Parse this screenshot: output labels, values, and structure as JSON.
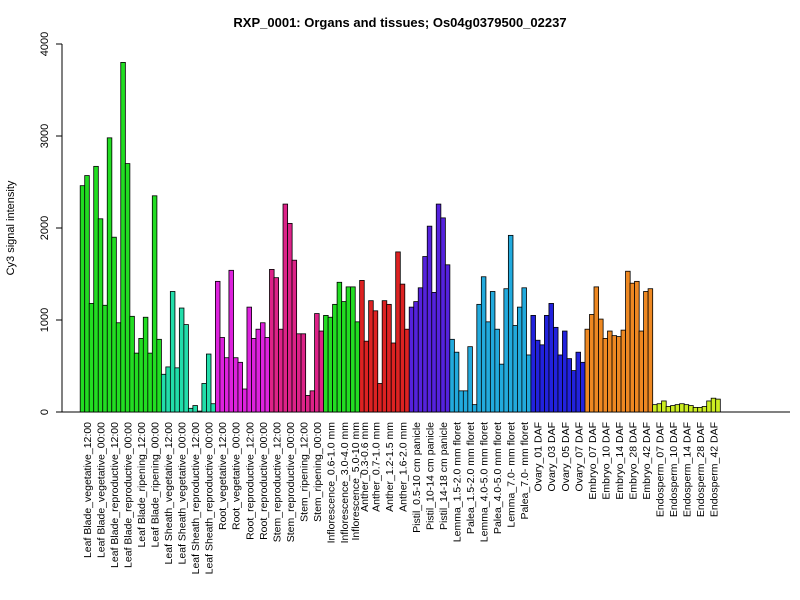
{
  "chart_data": {
    "type": "bar",
    "title": "RXP_0001: Organs and tissues; Os04g0379500_02237",
    "xlabel": "",
    "ylabel": "Cy3 signal intensity",
    "ylim": [
      0,
      4000
    ],
    "yticks": [
      0,
      1000,
      2000,
      3000,
      4000
    ],
    "grid": false,
    "groups": [
      {
        "label": "Leaf Blade_vegetative_12:00",
        "color": "#22dd22",
        "values": [
          2460,
          2570,
          1180
        ]
      },
      {
        "label": "Leaf Blade_vegetative_00:00",
        "color": "#22dd22",
        "values": [
          2670,
          2100,
          1160
        ]
      },
      {
        "label": "Leaf Blade_reproductive_12:00",
        "color": "#22dd22",
        "values": [
          2980,
          1900,
          970
        ]
      },
      {
        "label": "Leaf Blade_reproductive_00:00",
        "color": "#22dd22",
        "values": [
          3800,
          2700,
          1040
        ]
      },
      {
        "label": "Leaf Blade_ripening_12:00",
        "color": "#22dd22",
        "values": [
          640,
          800,
          1030
        ]
      },
      {
        "label": "Leaf Blade_ripening_00:00",
        "color": "#22dd22",
        "values": [
          640,
          2350,
          790
        ]
      },
      {
        "label": "Leaf Sheath_vegetative_12:00",
        "color": "#22ddaa",
        "values": [
          410,
          490,
          1310
        ]
      },
      {
        "label": "Leaf Sheath_vegetative_00:00",
        "color": "#22ddaa",
        "values": [
          480,
          1130,
          950
        ]
      },
      {
        "label": "Leaf Sheath_reproductive_12:00",
        "color": "#22ddaa",
        "values": [
          40,
          70,
          10
        ]
      },
      {
        "label": "Leaf Sheath_reproductive_00:00",
        "color": "#22ddaa",
        "values": [
          310,
          630,
          90
        ]
      },
      {
        "label": "Root_vegetative_12:00",
        "color": "#dd22dd",
        "values": [
          1420,
          810,
          590
        ]
      },
      {
        "label": "Root_vegetative_00:00",
        "color": "#dd22dd",
        "values": [
          1540,
          590,
          540
        ]
      },
      {
        "label": "Root_reproductive_12:00",
        "color": "#dd22dd",
        "values": [
          250,
          1140,
          800
        ]
      },
      {
        "label": "Root_reproductive_00:00",
        "color": "#dd22dd",
        "values": [
          900,
          970,
          810
        ]
      },
      {
        "label": "Stem_reproductive_12:00",
        "color": "#dd2288",
        "values": [
          1550,
          1460,
          900
        ]
      },
      {
        "label": "Stem_reproductive_00:00",
        "color": "#dd2288",
        "values": [
          2260,
          2050,
          1650
        ]
      },
      {
        "label": "Stem_ripening_12:00",
        "color": "#dd2288",
        "values": [
          850,
          850,
          180
        ]
      },
      {
        "label": "Stem_ripening_00:00",
        "color": "#dd2288",
        "values": [
          230,
          1070,
          880
        ]
      },
      {
        "label": "Inflorescence_0.6-1.0 mm",
        "color": "#22dd22",
        "values": [
          1050,
          1030,
          1170
        ]
      },
      {
        "label": "Inflorescence_3.0-4.0 mm",
        "color": "#22dd22",
        "values": [
          1410,
          1200,
          1360
        ]
      },
      {
        "label": "Inflorescence_5.0-10 mm",
        "color": "#22dd22",
        "values": [
          1360,
          980
        ]
      },
      {
        "label": "Anther_0.3-0.6 mm",
        "color": "#dd2222",
        "values": [
          1430,
          770
        ]
      },
      {
        "label": "Anther_0.7-1.0 mm",
        "color": "#dd2222",
        "values": [
          1210,
          1100,
          310
        ]
      },
      {
        "label": "Anther_1.2-1.5 mm",
        "color": "#dd2222",
        "values": [
          1210,
          1170,
          750
        ]
      },
      {
        "label": "Anther_1.6-2.0 mm",
        "color": "#dd2222",
        "values": [
          1740,
          1390,
          900
        ]
      },
      {
        "label": "Pistil_0.5-10 cm panicle",
        "color": "#5522dd",
        "values": [
          1140,
          1200,
          1350
        ]
      },
      {
        "label": "Pistil_10-14 cm panicle",
        "color": "#5522dd",
        "values": [
          1690,
          2020,
          1300
        ]
      },
      {
        "label": "Pistil_14-18 cm panicle",
        "color": "#5522dd",
        "values": [
          2260,
          2110,
          1600
        ]
      },
      {
        "label": "Lemma_1.5-2.0 mm floret",
        "color": "#22aadd",
        "values": [
          790,
          650,
          230
        ]
      },
      {
        "label": "Palea_1.5-2.0 mm floret",
        "color": "#22aadd",
        "values": [
          230,
          710,
          80
        ]
      },
      {
        "label": "Lemma_4.0-5.0 mm floret",
        "color": "#22aadd",
        "values": [
          1170,
          1470,
          980
        ]
      },
      {
        "label": "Palea_4.0-5.0 mm floret",
        "color": "#22aadd",
        "values": [
          1310,
          900,
          520
        ]
      },
      {
        "label": "Lemma_7.0- mm floret",
        "color": "#22aadd",
        "values": [
          1340,
          1920,
          940
        ]
      },
      {
        "label": "Palea_7.0- mm floret",
        "color": "#22aadd",
        "values": [
          1140,
          1350,
          620
        ]
      },
      {
        "label": "Ovary_01 DAF",
        "color": "#2222dd",
        "values": [
          1050,
          780,
          730
        ]
      },
      {
        "label": "Ovary_03 DAF",
        "color": "#2222dd",
        "values": [
          1050,
          1180,
          920
        ]
      },
      {
        "label": "Ovary_05 DAF",
        "color": "#2222dd",
        "values": [
          620,
          880,
          580
        ]
      },
      {
        "label": "Ovary_07 DAF",
        "color": "#2222dd",
        "values": [
          450,
          650,
          540
        ]
      },
      {
        "label": "Embryo_07 DAF",
        "color": "#ee8822",
        "values": [
          900,
          1060,
          1360
        ]
      },
      {
        "label": "Embryo_10 DAF",
        "color": "#ee8822",
        "values": [
          1010,
          800,
          880
        ]
      },
      {
        "label": "Embryo_14 DAF",
        "color": "#ee8822",
        "values": [
          830,
          820,
          890
        ]
      },
      {
        "label": "Embryo_28 DAF",
        "color": "#ee8822",
        "values": [
          1530,
          1400,
          1420
        ]
      },
      {
        "label": "Embryo_42 DAF",
        "color": "#ee8822",
        "values": [
          880,
          1310,
          1340
        ]
      },
      {
        "label": "Endosperm_07 DAF",
        "color": "#ccee22",
        "values": [
          80,
          90,
          120
        ]
      },
      {
        "label": "Endosperm_10 DAF",
        "color": "#ccee22",
        "values": [
          60,
          70,
          80
        ]
      },
      {
        "label": "Endosperm_14 DAF",
        "color": "#ccee22",
        "values": [
          90,
          80,
          70
        ]
      },
      {
        "label": "Endosperm_28 DAF",
        "color": "#ccee22",
        "values": [
          50,
          50,
          60
        ]
      },
      {
        "label": "Endosperm_42 DAF",
        "color": "#ccee22",
        "values": [
          120,
          150,
          140
        ]
      }
    ]
  }
}
